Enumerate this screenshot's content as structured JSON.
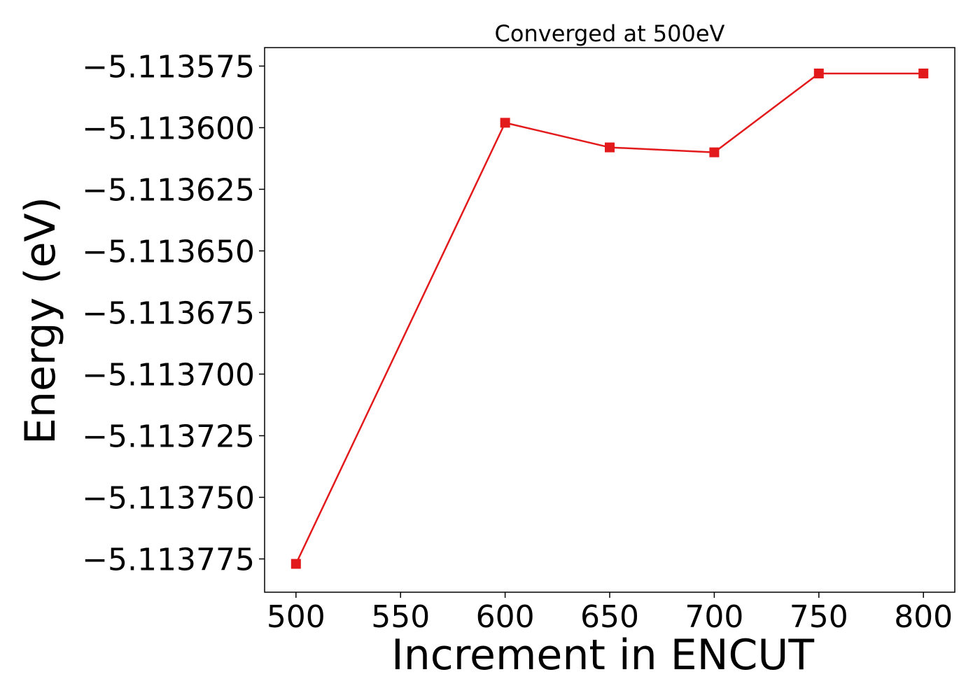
{
  "chart_data": {
    "type": "line",
    "title": "Converged at 500eV",
    "xlabel": "Increment in ENCUT",
    "ylabel": "Energy (eV)",
    "x": [
      500,
      600,
      650,
      700,
      750,
      800
    ],
    "series": [
      {
        "values": [
          -5.113777,
          -5.113598,
          -5.113608,
          -5.11361,
          -5.113578,
          -5.113578
        ],
        "color": "#e31a1c",
        "marker": "square"
      }
    ],
    "xlim": [
      485,
      815
    ],
    "ylim": [
      -5.1137885,
      -5.1135675
    ],
    "xticks": [
      500,
      550,
      600,
      650,
      700,
      750,
      800
    ],
    "xtick_labels": [
      "500",
      "550",
      "600",
      "650",
      "700",
      "750",
      "800"
    ],
    "yticks": [
      -5.113575,
      -5.1136,
      -5.113625,
      -5.11365,
      -5.113675,
      -5.1137,
      -5.113725,
      -5.11375,
      -5.113775
    ],
    "ytick_labels": [
      "−5.113575",
      "−5.113600",
      "−5.113625",
      "−5.113650",
      "−5.113675",
      "−5.113700",
      "−5.113725",
      "−5.113750",
      "−5.113775"
    ],
    "grid": false,
    "legend": "none"
  }
}
